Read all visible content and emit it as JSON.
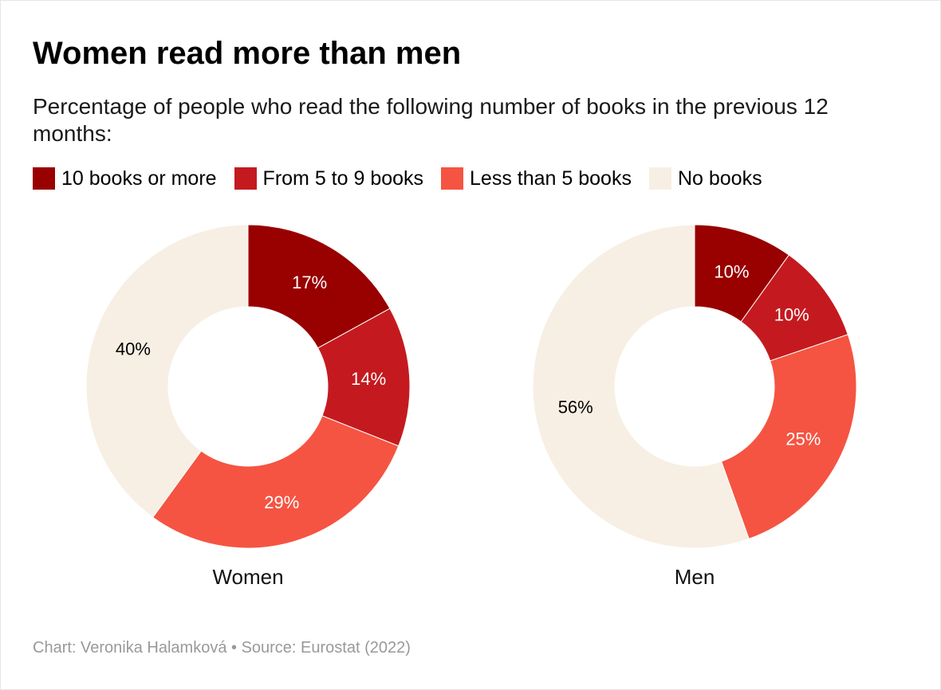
{
  "title": "Women read more than men",
  "subtitle": "Percentage of people who read the following number of books in the previous 12 months:",
  "colors": {
    "10 books or more": "#990000",
    "From 5 to 9 books": "#c41a1f",
    "Less than 5 books": "#f55442",
    "No books": "#f7efe3"
  },
  "label_colors": {
    "10 books or more": "#ffffff",
    "From 5 to 9 books": "#ffffff",
    "Less than 5 books": "#ffffff",
    "No books": "#000000"
  },
  "legend": [
    "10 books or more",
    "From 5 to 9 books",
    "Less than 5 books",
    "No books"
  ],
  "chart_data": [
    {
      "type": "pie",
      "title": "Women",
      "categories": [
        "10 books or more",
        "From 5 to 9 books",
        "Less than 5 books",
        "No books"
      ],
      "values": [
        17,
        14,
        29,
        40
      ],
      "labels": [
        "17%",
        "14%",
        "29%",
        "40%"
      ],
      "legend": "top-left"
    },
    {
      "type": "pie",
      "title": "Men",
      "categories": [
        "10 books or more",
        "From 5 to 9 books",
        "Less than 5 books",
        "No books"
      ],
      "values": [
        10,
        10,
        25,
        56
      ],
      "labels": [
        "10%",
        "10%",
        "25%",
        "56%"
      ],
      "legend": "top-left"
    }
  ],
  "source": "Chart: Veronika Halamková • Source: Eurostat (2022)"
}
